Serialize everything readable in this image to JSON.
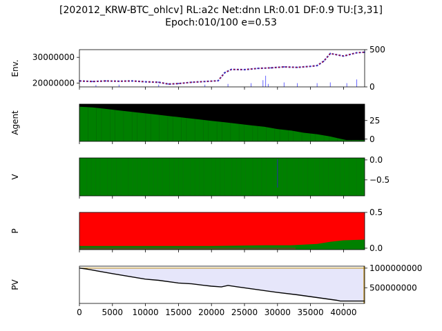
{
  "title_line1": "[202012_KRW-BTC_ohlcv] RL:a2c Net:dnn LR:0.01 DF:0.9 TU:[3,31]",
  "title_line2": "Epoch:010/100 e=0.53",
  "colors": {
    "price": "#cc0000",
    "price_alt": "#3333cc",
    "volume": "#6666ff",
    "agent_bg": "#007f00",
    "agent_line": "#000000",
    "value_bg": "#008000",
    "value_mark": "#1f3f8f",
    "policy_sell": "#ff0000",
    "policy_buy": "#008000",
    "pv_fill": "#e6e6fa",
    "pv_line": "#000000",
    "pv_edge": "#b8860b"
  },
  "chart_data": [
    {
      "panel": "env",
      "type": "line",
      "ylabel": "Env.",
      "xlim": [
        0,
        43200
      ],
      "ylim": [
        18500000,
        33000000
      ],
      "yticks": [
        "20000000",
        "30000000"
      ],
      "y2lim": [
        0,
        500
      ],
      "y2ticks": [
        "0",
        "500"
      ],
      "series": [
        {
          "x": [
            0,
            2000,
            4000,
            6000,
            8000,
            10000,
            12000,
            13500,
            15000,
            17000,
            19000,
            21000,
            22000,
            23000,
            25000,
            27000,
            29000,
            31000,
            33000,
            35000,
            36000,
            37000,
            38000,
            40000,
            42000,
            43200
          ],
          "values": [
            20800000,
            20600000,
            20800000,
            20700000,
            20800000,
            20500000,
            20300000,
            19600000,
            19800000,
            20300000,
            20600000,
            20900000,
            24000000,
            25300000,
            25200000,
            25700000,
            25900000,
            26300000,
            26100000,
            26500000,
            26800000,
            28500000,
            31500000,
            30500000,
            31800000,
            32000000
          ]
        }
      ],
      "volume": {
        "x": [
          2500,
          6000,
          12000,
          19000,
          22500,
          26000,
          27800,
          28200,
          28600,
          31000,
          33000,
          36000,
          38000,
          40500,
          42000
        ],
        "values": [
          25,
          30,
          30,
          30,
          40,
          50,
          90,
          150,
          40,
          60,
          50,
          50,
          60,
          50,
          100
        ]
      }
    },
    {
      "panel": "agent",
      "type": "area",
      "ylabel": "Agent",
      "xlim": [
        0,
        43200
      ],
      "ylim": [
        -3,
        47
      ],
      "yticks": [
        "0",
        "25"
      ],
      "x": [
        0,
        2000,
        4000,
        6000,
        8000,
        10000,
        12000,
        14000,
        16000,
        18000,
        20000,
        22000,
        24000,
        26000,
        28000,
        30000,
        32000,
        34000,
        36000,
        38000,
        39500,
        40500,
        43200
      ],
      "values": [
        45,
        44,
        42,
        40,
        38,
        36,
        34,
        32,
        30,
        28,
        26,
        24,
        22,
        20,
        18,
        15,
        13,
        10,
        8,
        5,
        2,
        0,
        0
      ]
    },
    {
      "panel": "value",
      "type": "heatmap",
      "ylabel": "V",
      "xlim": [
        0,
        43200
      ],
      "ylim": [
        -0.9,
        0.05
      ],
      "yticks": [
        "−0.5",
        "0.0"
      ],
      "markers_x": [
        30000
      ]
    },
    {
      "panel": "policy",
      "type": "area",
      "ylabel": "P",
      "xlim": [
        0,
        43200
      ],
      "ylim": [
        -0.02,
        0.5
      ],
      "yticks": [
        "0.0",
        "0.5"
      ],
      "series": [
        {
          "name": "buy",
          "x": [
            0,
            10000,
            20000,
            28000,
            32000,
            34000,
            36000,
            38000,
            40000,
            43200
          ],
          "values": [
            0.03,
            0.03,
            0.03,
            0.04,
            0.04,
            0.05,
            0.06,
            0.09,
            0.11,
            0.12
          ]
        }
      ]
    },
    {
      "panel": "pv",
      "type": "area",
      "ylabel": "PV",
      "xlim": [
        0,
        43200
      ],
      "ylim": [
        100000000,
        1050000000
      ],
      "yticks": [
        "500000000",
        "1000000000"
      ],
      "xticks": [
        "0",
        "5000",
        "10000",
        "15000",
        "20000",
        "25000",
        "30000",
        "35000",
        "40000"
      ],
      "baseline": 1000000000,
      "x": [
        0,
        1000,
        2000,
        3000,
        5000,
        10000,
        12000,
        15000,
        17000,
        19000,
        20000,
        21500,
        22500,
        24000,
        27000,
        30000,
        33000,
        36000,
        39000,
        39500,
        43200
      ],
      "values": [
        1000000000,
        980000000,
        950000000,
        920000000,
        860000000,
        720000000,
        690000000,
        620000000,
        600000000,
        560000000,
        540000000,
        520000000,
        560000000,
        520000000,
        450000000,
        380000000,
        320000000,
        250000000,
        180000000,
        160000000,
        160000000
      ]
    }
  ]
}
